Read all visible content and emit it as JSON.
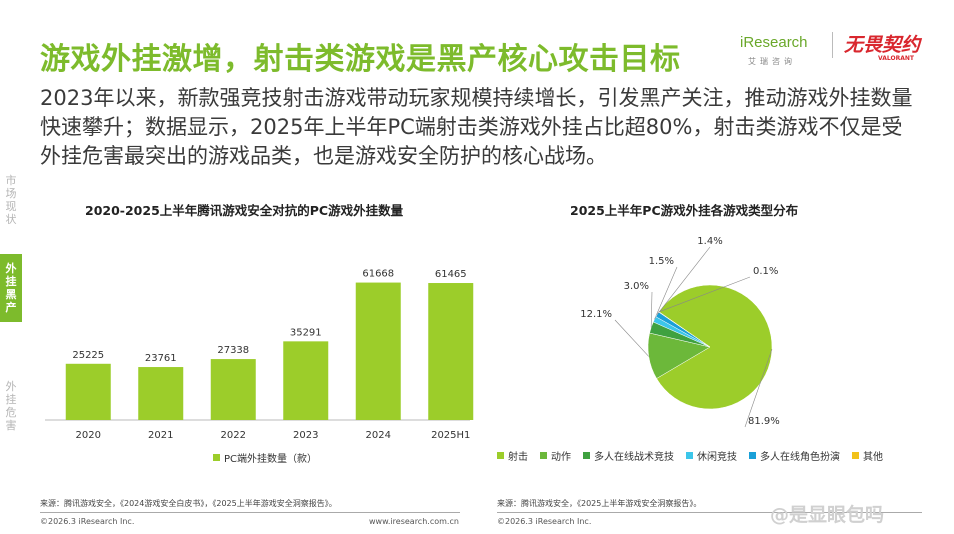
{
  "title": "游戏外挂激增，射击类游戏是黑产核心攻击目标",
  "intro": "2023年以来，新款强竞技射击游戏带动玩家规模持续增长，引发黑产关注，推动游戏外挂数量快速攀升；数据显示，2025年上半年PC端射击类游戏外挂占比超80%，射击类游戏不仅是受外挂危害最突出的游戏品类，也是游戏安全防护的核心战场。",
  "logos": {
    "iresearch": "iResearch",
    "iresearch_sub": "艾瑞咨询",
    "valorant": "无畏契约",
    "valorant_sub": "VALORANT"
  },
  "sidenav": {
    "item1": "市场现状",
    "item2": "外挂黑产",
    "item3": "外挂危害"
  },
  "colors": {
    "accent": "#7dbb2c",
    "bar": "#9ccd2a"
  },
  "left_chart": {
    "legend": "PC端外挂数量（款）"
  },
  "right_chart": {
    "title": "2025上半年PC游戏外挂各游戏类型分布"
  },
  "chart_data": [
    {
      "type": "bar",
      "title": "2020-2025上半年腾讯游戏安全对抗的PC游戏外挂数量",
      "categories": [
        "2020",
        "2021",
        "2022",
        "2023",
        "2024",
        "2025H1"
      ],
      "series": [
        {
          "name": "PC端外挂数量（款）",
          "values": [
            25225,
            23761,
            27338,
            35291,
            61668,
            61465
          ]
        }
      ],
      "ylim": [
        0,
        70000
      ],
      "grid": false
    },
    {
      "type": "pie",
      "title": "2025上半年PC游戏外挂各游戏类型分布",
      "labels": [
        "射击",
        "动作",
        "多人在线战术竞技",
        "休闲竞技",
        "多人在线角色扮演",
        "其他"
      ],
      "values": [
        81.9,
        12.1,
        3.0,
        1.5,
        1.4,
        0.1
      ],
      "value_labels": [
        "81.9%",
        "12.1%",
        "3.0%",
        "1.5%",
        "1.4%",
        "0.1%"
      ],
      "colors": [
        "#9ccd2a",
        "#6cb83a",
        "#3fa140",
        "#3cc6ea",
        "#1aa0d8",
        "#f2c21a"
      ],
      "legend_position": "bottom"
    }
  ],
  "sources": {
    "left": "来源：腾讯游戏安全，《2024游戏安全白皮书》，《2025上半年游戏安全洞察报告》。",
    "right": "来源：腾讯游戏安全，《2025上半年游戏安全洞察报告》。"
  },
  "footer": {
    "copyright_left": "©2026.3 iResearch Inc.",
    "url": "www.iresearch.com.cn",
    "copyright_right": "©2026.3 iResearch Inc."
  },
  "watermark": "@是显眼包吗"
}
